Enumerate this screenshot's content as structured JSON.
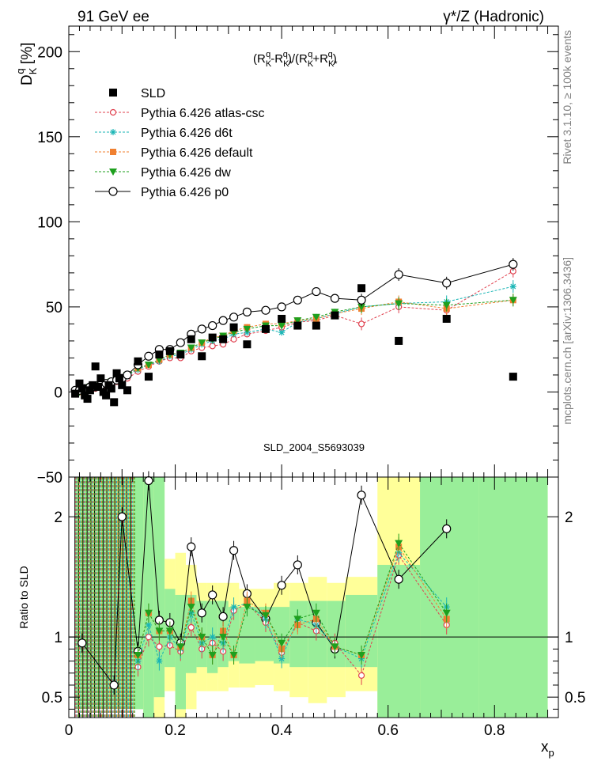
{
  "header": {
    "left": "91 GeV ee",
    "right": "γ*/Z (Hadronic)"
  },
  "side": {
    "rivet": "Rivet 3.1.10, ≥ 100k events",
    "mcplots": "mcplots.cern.ch [arXiv:1306.3436]"
  },
  "plot_label": "SLD_2004_S5693039",
  "formula": "(R_K^q - R_K*^q)/(R_K^q + R_K*^q)",
  "chart_data": [
    {
      "type": "scatter",
      "panel": "main",
      "ylabel": "D_K^q [%]",
      "ylim": [
        -50,
        215
      ],
      "xlim": [
        0,
        0.92
      ],
      "yticks": [
        200,
        150,
        100,
        50,
        0,
        -50
      ],
      "ytick_labels": [
        "200",
        "150",
        "100",
        "50",
        "0",
        "−50"
      ],
      "legend_position": "top-left",
      "series": [
        {
          "name": "SLD",
          "style": "data",
          "x": [
            0.012,
            0.02,
            0.025,
            0.03,
            0.035,
            0.04,
            0.045,
            0.05,
            0.055,
            0.06,
            0.065,
            0.07,
            0.075,
            0.08,
            0.085,
            0.09,
            0.095,
            0.1,
            0.11,
            0.13,
            0.15,
            0.17,
            0.19,
            0.21,
            0.23,
            0.25,
            0.27,
            0.29,
            0.31,
            0.335,
            0.37,
            0.4,
            0.43,
            0.465,
            0.5,
            0.55,
            0.62,
            0.71,
            0.835
          ],
          "y": [
            -1,
            5,
            2,
            -2,
            -4,
            1,
            4,
            15,
            3,
            8,
            0,
            -2,
            4,
            2,
            -6,
            11,
            8,
            4,
            1,
            18,
            9,
            22,
            24,
            22,
            31,
            21,
            32,
            31,
            38,
            28,
            37,
            43,
            39,
            39,
            45,
            61,
            30,
            43,
            9
          ]
        },
        {
          "name": "Pythia 6.426 atlas-csc",
          "style": "circle-open",
          "color": "#e0404e",
          "x": [
            0.012,
            0.02,
            0.03,
            0.04,
            0.05,
            0.06,
            0.07,
            0.08,
            0.09,
            0.1,
            0.11,
            0.13,
            0.15,
            0.17,
            0.19,
            0.21,
            0.23,
            0.25,
            0.27,
            0.29,
            0.31,
            0.335,
            0.37,
            0.4,
            0.43,
            0.465,
            0.5,
            0.55,
            0.62,
            0.71,
            0.835
          ],
          "y": [
            -1,
            0,
            1,
            2,
            2,
            3,
            4,
            5,
            6,
            7,
            8,
            12,
            15,
            18,
            20,
            20,
            24,
            26,
            27,
            28,
            31,
            34,
            36,
            38,
            41,
            42,
            45,
            40,
            50,
            48,
            71
          ]
        },
        {
          "name": "Pythia 6.426 d6t",
          "style": "star",
          "color": "#19b5b5",
          "x": [
            0.012,
            0.02,
            0.03,
            0.04,
            0.05,
            0.06,
            0.07,
            0.08,
            0.09,
            0.1,
            0.11,
            0.13,
            0.15,
            0.17,
            0.19,
            0.21,
            0.23,
            0.25,
            0.27,
            0.29,
            0.31,
            0.335,
            0.37,
            0.4,
            0.43,
            0.465,
            0.5,
            0.55,
            0.62,
            0.71,
            0.835
          ],
          "y": [
            -1,
            1,
            2,
            3,
            3,
            4,
            5,
            6,
            7,
            8,
            10,
            13,
            16,
            18,
            21,
            22,
            25,
            28,
            30,
            31,
            34,
            35,
            37,
            35,
            41,
            43,
            46,
            50,
            52,
            53,
            62
          ]
        },
        {
          "name": "Pythia 6.426 default",
          "style": "square",
          "color": "#f08030",
          "x": [
            0.012,
            0.02,
            0.03,
            0.04,
            0.05,
            0.06,
            0.07,
            0.08,
            0.09,
            0.1,
            0.11,
            0.13,
            0.15,
            0.17,
            0.19,
            0.21,
            0.23,
            0.25,
            0.27,
            0.29,
            0.31,
            0.335,
            0.37,
            0.4,
            0.43,
            0.465,
            0.5,
            0.55,
            0.62,
            0.71,
            0.835
          ],
          "y": [
            -1,
            0,
            2,
            3,
            3,
            4,
            5,
            6,
            7,
            8,
            10,
            14,
            16,
            19,
            22,
            23,
            26,
            29,
            32,
            33,
            36,
            38,
            40,
            40,
            42,
            43,
            46,
            49,
            53,
            49,
            54
          ]
        },
        {
          "name": "Pythia 6.426 dw",
          "style": "triangle-down",
          "color": "#1ea01e",
          "x": [
            0.012,
            0.02,
            0.03,
            0.04,
            0.05,
            0.06,
            0.07,
            0.08,
            0.09,
            0.1,
            0.11,
            0.13,
            0.15,
            0.17,
            0.19,
            0.21,
            0.23,
            0.25,
            0.27,
            0.29,
            0.31,
            0.335,
            0.37,
            0.4,
            0.43,
            0.465,
            0.5,
            0.55,
            0.62,
            0.71,
            0.835
          ],
          "y": [
            -1,
            0,
            2,
            3,
            3,
            4,
            5,
            6,
            7,
            8,
            10,
            14,
            16,
            19,
            22,
            23,
            26,
            29,
            31,
            33,
            35,
            37,
            39,
            39,
            42,
            44,
            47,
            50,
            52,
            51,
            54
          ]
        },
        {
          "name": "Pythia 6.426 p0",
          "style": "circle-open-line",
          "color": "#000000",
          "x": [
            0.012,
            0.02,
            0.03,
            0.04,
            0.05,
            0.06,
            0.07,
            0.08,
            0.09,
            0.1,
            0.11,
            0.13,
            0.15,
            0.17,
            0.19,
            0.21,
            0.23,
            0.25,
            0.27,
            0.29,
            0.31,
            0.335,
            0.37,
            0.4,
            0.43,
            0.465,
            0.5,
            0.55,
            0.62,
            0.71,
            0.835
          ],
          "y": [
            1,
            1,
            2,
            3,
            3,
            4,
            5,
            6,
            7,
            8,
            10,
            16,
            21,
            25,
            25,
            29,
            34,
            37,
            39,
            42,
            44,
            47,
            48,
            50,
            54,
            59,
            55,
            54,
            69,
            64,
            75
          ]
        }
      ]
    },
    {
      "type": "scatter",
      "panel": "ratio",
      "ylabel": "Ratio to SLD",
      "xlabel": "x_p",
      "ylim": [
        0.33,
        2.33
      ],
      "xlim": [
        0,
        0.92
      ],
      "yticks": [
        0.5,
        1,
        2
      ],
      "ytick_labels": [
        "0.5",
        "1",
        "2"
      ],
      "xticks": [
        0,
        0.2,
        0.4,
        0.6,
        0.8
      ],
      "xtick_labels": [
        "0",
        "0.2",
        "0.4",
        "0.6",
        "0.8"
      ],
      "reference": 1,
      "series": [
        {
          "name": "Pythia 6.426 p0",
          "color": "#000000",
          "x": [
            0.025,
            0.085,
            0.1,
            0.13,
            0.15,
            0.17,
            0.19,
            0.21,
            0.23,
            0.25,
            0.27,
            0.29,
            0.31,
            0.335,
            0.37,
            0.4,
            0.43,
            0.465,
            0.5,
            0.55,
            0.62,
            0.71
          ],
          "y": [
            0.95,
            0.6,
            2.0,
            0.88,
            2.3,
            1.14,
            1.12,
            0.95,
            1.75,
            1.2,
            1.35,
            1.17,
            1.72,
            1.36,
            1.15,
            1.43,
            1.6,
            1.12,
            0.9,
            2.18,
            1.48,
            1.9
          ]
        },
        {
          "name": "Pythia 6.426 atlas-csc",
          "color": "#e0404e",
          "x": [
            0.13,
            0.15,
            0.17,
            0.19,
            0.21,
            0.23,
            0.25,
            0.27,
            0.29,
            0.31,
            0.335,
            0.37,
            0.4,
            0.43,
            0.465,
            0.5,
            0.55,
            0.62,
            0.71
          ],
          "y": [
            0.75,
            1.0,
            0.92,
            0.93,
            0.88,
            1.08,
            0.9,
            0.95,
            0.88,
            1.22,
            1.28,
            1.12,
            0.87,
            1.12,
            1.05,
            0.95,
            0.68,
            1.68,
            1.1
          ]
        },
        {
          "name": "Pythia 6.426 d6t",
          "color": "#19b5b5",
          "x": [
            0.13,
            0.15,
            0.17,
            0.19,
            0.21,
            0.23,
            0.25,
            0.27,
            0.29,
            0.31,
            0.335,
            0.37,
            0.4,
            0.43,
            0.465,
            0.5,
            0.55,
            0.62,
            0.71
          ],
          "y": [
            0.8,
            1.1,
            0.8,
            1.0,
            0.9,
            1.2,
            0.95,
            1.0,
            0.95,
            1.25,
            1.28,
            1.15,
            0.82,
            1.15,
            1.1,
            0.92,
            0.82,
            1.7,
            1.25
          ]
        },
        {
          "name": "Pythia 6.426 default",
          "color": "#f08030",
          "x": [
            0.13,
            0.15,
            0.17,
            0.19,
            0.21,
            0.23,
            0.25,
            0.27,
            0.29,
            0.31,
            0.335,
            0.37,
            0.4,
            0.43,
            0.465,
            0.5,
            0.55,
            0.62,
            0.71
          ],
          "y": [
            0.85,
            1.2,
            1.05,
            1.05,
            0.92,
            1.3,
            1.0,
            0.85,
            1.05,
            0.85,
            1.3,
            1.2,
            0.9,
            1.1,
            1.15,
            0.92,
            0.85,
            1.75,
            1.15
          ]
        },
        {
          "name": "Pythia 6.426 dw",
          "color": "#1ea01e",
          "x": [
            0.13,
            0.15,
            0.17,
            0.19,
            0.21,
            0.23,
            0.25,
            0.27,
            0.29,
            0.31,
            0.335,
            0.37,
            0.4,
            0.43,
            0.465,
            0.5,
            0.55,
            0.62,
            0.71
          ],
          "y": [
            0.85,
            1.2,
            1.05,
            1.05,
            0.92,
            1.25,
            1.0,
            0.85,
            1.0,
            0.85,
            1.25,
            1.18,
            0.95,
            1.15,
            1.2,
            0.92,
            0.85,
            1.78,
            1.2
          ]
        }
      ]
    }
  ]
}
